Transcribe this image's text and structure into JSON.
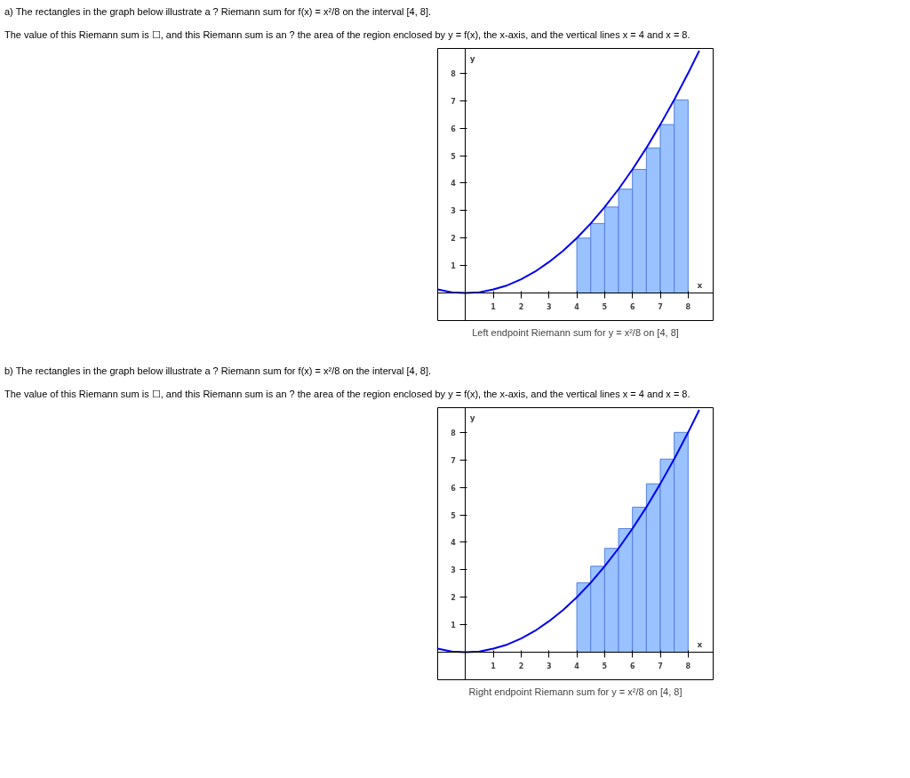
{
  "chart_data": [
    {
      "type": "bar",
      "title": "Left endpoint Riemann sum for y = x²/8 on [4, 8]",
      "xlabel": "x",
      "ylabel": "y",
      "annotations": [
        "a) The rectangles in the graph below illustrate a ? Riemann sum for f(x) = x²/8 on the interval [4, 8].",
        "The value of this Riemann sum is ☐, and this Riemann sum is an ? the area of the region enclosed by y = f(x), the x-axis, and the vertical lines x = 4 and x = 8."
      ],
      "series": [
        {
          "x": [
            4.25,
            4.75,
            5.25,
            5.75,
            6.25,
            6.75,
            7.25,
            7.75
          ],
          "values": [
            2,
            2.53,
            3.13,
            3.78,
            4.5,
            5.28,
            6.13,
            7.03
          ],
          "color": "#99c2ff"
        },
        {
          "type": "line",
          "x": [
            -1,
            -0.5,
            0,
            0.5,
            1,
            1.5,
            2,
            2.5,
            3,
            3.5,
            4,
            4.5,
            5,
            5.5,
            6,
            6.5,
            7,
            7.5,
            8,
            8.4
          ],
          "values": [
            0.13,
            0.03,
            0,
            0.03,
            0.13,
            0.28,
            0.5,
            0.78,
            1.13,
            1.53,
            2,
            2.53,
            3.13,
            3.78,
            4.5,
            5.28,
            6.13,
            7.03,
            8,
            8.82
          ],
          "color": "#0000ee"
        }
      ],
      "xlim": [
        -1,
        8.9
      ],
      "ylim": [
        -1,
        8.9
      ],
      "xticks": [
        1,
        2,
        3,
        4,
        5,
        6,
        7,
        8
      ],
      "yticks": [
        1,
        2,
        3,
        4,
        5,
        6,
        7,
        8
      ],
      "grid": false
    },
    {
      "type": "bar",
      "title": "Right endpoint Riemann sum for y = x²/8 on [4, 8]",
      "xlabel": "x",
      "ylabel": "y",
      "annotations": [
        "b) The rectangles in the graph below illustrate a ? Riemann sum for f(x) = x²/8 on the interval [4, 8].",
        "The value of this Riemann sum is ☐, and this Riemann sum is an ? the area of the region enclosed by y = f(x), the x-axis, and the vertical lines x = 4 and x = 8."
      ],
      "series": [
        {
          "x": [
            4.25,
            4.75,
            5.25,
            5.75,
            6.25,
            6.75,
            7.25,
            7.75
          ],
          "values": [
            2.53,
            3.13,
            3.78,
            4.5,
            5.28,
            6.13,
            7.03,
            8
          ],
          "color": "#99c2ff"
        },
        {
          "type": "line",
          "x": [
            -1,
            -0.5,
            0,
            0.5,
            1,
            1.5,
            2,
            2.5,
            3,
            3.5,
            4,
            4.5,
            5,
            5.5,
            6,
            6.5,
            7,
            7.5,
            8,
            8.4
          ],
          "values": [
            0.13,
            0.03,
            0,
            0.03,
            0.13,
            0.28,
            0.5,
            0.78,
            1.13,
            1.53,
            2,
            2.53,
            3.13,
            3.78,
            4.5,
            5.28,
            6.13,
            7.03,
            8,
            8.82
          ],
          "color": "#0000ee"
        }
      ],
      "xlim": [
        -1,
        8.9
      ],
      "ylim": [
        -1,
        8.9
      ],
      "xticks": [
        1,
        2,
        3,
        4,
        5,
        6,
        7,
        8
      ],
      "yticks": [
        1,
        2,
        3,
        4,
        5,
        6,
        7,
        8
      ],
      "grid": false
    }
  ]
}
